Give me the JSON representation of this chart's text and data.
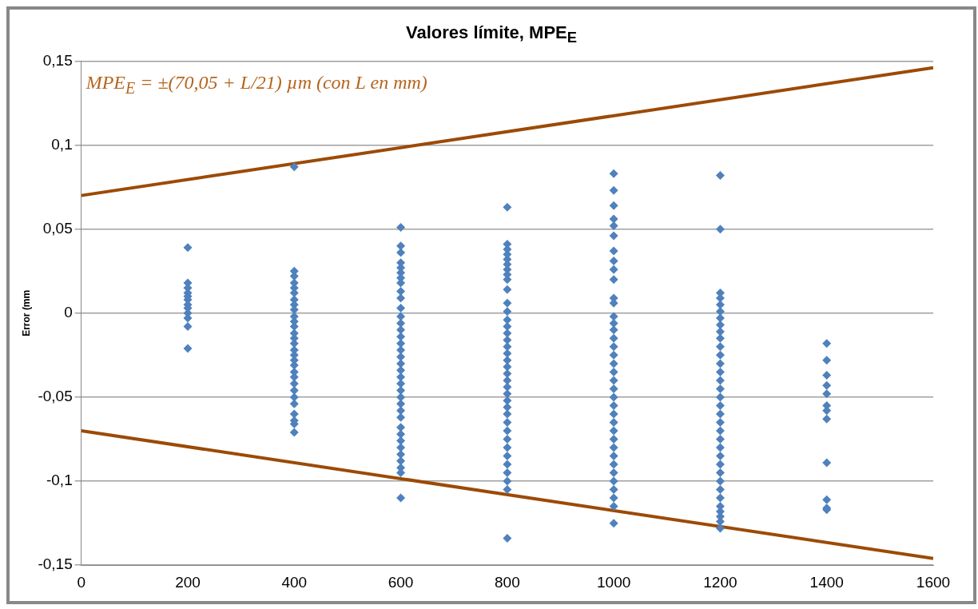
{
  "chart_data": {
    "type": "scatter",
    "title": "Valores límite, MPE$_{E}$",
    "ylabel": "Error (mm",
    "annotations": [
      "MPE$_{E}$ = ±(70,05 + L/21) µm (con L en mm)"
    ],
    "xlim": [
      0,
      1600
    ],
    "xticks": [
      0,
      200,
      400,
      600,
      800,
      1000,
      1200,
      1400,
      1600
    ],
    "ylim": [
      -0.15,
      0.15
    ],
    "yticks": [
      {
        "value": -0.15,
        "label": "-0,15"
      },
      {
        "value": -0.1,
        "label": "-0,1"
      },
      {
        "value": -0.05,
        "label": "-0,05"
      },
      {
        "value": 0,
        "label": "0"
      },
      {
        "value": 0.05,
        "label": "0,05"
      },
      {
        "value": 0.1,
        "label": "0,1"
      },
      {
        "value": 0.15,
        "label": "0,15"
      }
    ],
    "grid": "y",
    "legend": false,
    "series": [
      {
        "type": "scatter",
        "color": "#4f81bd",
        "marker": "diamond",
        "x": [
          200,
          200,
          200,
          200,
          200,
          200,
          200,
          200,
          200,
          200,
          200,
          200,
          400,
          400,
          400,
          400,
          400,
          400,
          400,
          400,
          400,
          400,
          400,
          400,
          400,
          400,
          400,
          400,
          400,
          400,
          400,
          400,
          400,
          400,
          400,
          400,
          400,
          400,
          400,
          400,
          400,
          600,
          600,
          600,
          600,
          600,
          600,
          600,
          600,
          600,
          600,
          600,
          600,
          600,
          600,
          600,
          600,
          600,
          600,
          600,
          600,
          600,
          600,
          600,
          600,
          600,
          600,
          600,
          600,
          600,
          600,
          600,
          600,
          600,
          600,
          600,
          600,
          800,
          800,
          800,
          800,
          800,
          800,
          800,
          800,
          800,
          800,
          800,
          800,
          800,
          800,
          800,
          800,
          800,
          800,
          800,
          800,
          800,
          800,
          800,
          800,
          800,
          800,
          800,
          800,
          800,
          800,
          800,
          800,
          800,
          800,
          800,
          800,
          800,
          1000,
          1000,
          1000,
          1000,
          1000,
          1000,
          1000,
          1000,
          1000,
          1000,
          1000,
          1000,
          1000,
          1000,
          1000,
          1000,
          1000,
          1000,
          1000,
          1000,
          1000,
          1000,
          1000,
          1000,
          1000,
          1000,
          1000,
          1000,
          1000,
          1000,
          1000,
          1000,
          1000,
          1000,
          1000,
          1000,
          1000,
          1200,
          1200,
          1200,
          1200,
          1200,
          1200,
          1200,
          1200,
          1200,
          1200,
          1200,
          1200,
          1200,
          1200,
          1200,
          1200,
          1200,
          1200,
          1200,
          1200,
          1200,
          1200,
          1200,
          1200,
          1200,
          1200,
          1200,
          1200,
          1200,
          1200,
          1200,
          1200,
          1200,
          1200,
          1400,
          1400,
          1400,
          1400,
          1400,
          1400,
          1400,
          1400,
          1400,
          1400,
          1400,
          1400
        ],
        "values": [
          0.039,
          0.018,
          0.015,
          0.012,
          0.01,
          0.008,
          0.005,
          0.003,
          0,
          -0.003,
          -0.008,
          -0.021,
          0.087,
          0.025,
          0.022,
          0.018,
          0.015,
          0.012,
          0.008,
          0.005,
          0.002,
          -0.002,
          -0.005,
          -0.008,
          -0.012,
          -0.015,
          -0.018,
          -0.022,
          -0.025,
          -0.028,
          -0.031,
          -0.035,
          -0.038,
          -0.042,
          -0.046,
          -0.05,
          -0.054,
          -0.06,
          -0.064,
          -0.066,
          -0.071,
          0.051,
          0.04,
          0.036,
          0.03,
          0.027,
          0.024,
          0.021,
          0.018,
          0.013,
          0.009,
          0.003,
          -0.002,
          -0.006,
          -0.01,
          -0.014,
          -0.018,
          -0.022,
          -0.026,
          -0.03,
          -0.034,
          -0.038,
          -0.042,
          -0.046,
          -0.05,
          -0.054,
          -0.058,
          -0.062,
          -0.068,
          -0.072,
          -0.076,
          -0.08,
          -0.084,
          -0.088,
          -0.092,
          -0.095,
          -0.11,
          0.063,
          0.041,
          0.038,
          0.035,
          0.032,
          0.029,
          0.026,
          0.023,
          0.02,
          0.014,
          0.006,
          0.001,
          -0.004,
          -0.008,
          -0.012,
          -0.016,
          -0.02,
          -0.024,
          -0.028,
          -0.032,
          -0.036,
          -0.04,
          -0.044,
          -0.048,
          -0.052,
          -0.056,
          -0.06,
          -0.065,
          -0.07,
          -0.075,
          -0.08,
          -0.085,
          -0.09,
          -0.095,
          -0.1,
          -0.105,
          -0.134,
          0.083,
          0.073,
          0.064,
          0.056,
          0.052,
          0.046,
          0.037,
          0.031,
          0.026,
          0.02,
          0.009,
          0.006,
          -0.002,
          -0.006,
          -0.01,
          -0.015,
          -0.02,
          -0.025,
          -0.03,
          -0.035,
          -0.04,
          -0.045,
          -0.05,
          -0.055,
          -0.06,
          -0.065,
          -0.07,
          -0.075,
          -0.08,
          -0.085,
          -0.09,
          -0.095,
          -0.1,
          -0.105,
          -0.11,
          -0.115,
          -0.125,
          0.082,
          0.05,
          0.012,
          0.009,
          0.005,
          0.001,
          -0.003,
          -0.007,
          -0.011,
          -0.015,
          -0.02,
          -0.025,
          -0.03,
          -0.035,
          -0.04,
          -0.045,
          -0.05,
          -0.055,
          -0.06,
          -0.065,
          -0.07,
          -0.075,
          -0.08,
          -0.085,
          -0.09,
          -0.095,
          -0.1,
          -0.105,
          -0.11,
          -0.115,
          -0.118,
          -0.121,
          -0.124,
          -0.128,
          -0.018,
          -0.028,
          -0.037,
          -0.043,
          -0.048,
          -0.055,
          -0.058,
          -0.063,
          -0.089,
          -0.111,
          -0.116,
          -0.117
        ]
      },
      {
        "type": "line",
        "color": "#9c4a06",
        "marker": "none",
        "x": [
          0,
          1600
        ],
        "values": [
          0.07,
          0.146
        ]
      },
      {
        "type": "line",
        "color": "#9c4a06",
        "marker": "none",
        "x": [
          0,
          1600
        ],
        "values": [
          -0.07,
          -0.146
        ]
      }
    ]
  }
}
